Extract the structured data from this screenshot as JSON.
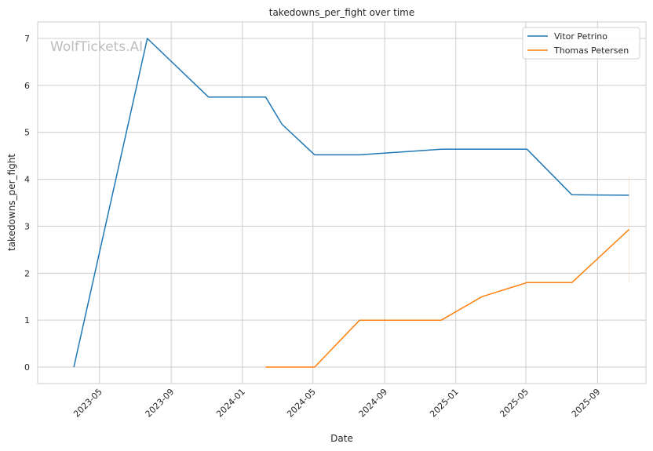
{
  "chart_data": {
    "type": "line",
    "title": "takedowns_per_fight over time",
    "xlabel": "Date",
    "ylabel": "takedowns_per_fight",
    "watermark": "WolfTickets.AI",
    "xlim": [
      "2023-01-15",
      "2025-11-23"
    ],
    "ylim": [
      -0.35,
      7.35
    ],
    "yticks": [
      0,
      1,
      2,
      3,
      4,
      5,
      6,
      7
    ],
    "xticks": [
      "2023-05",
      "2023-09",
      "2024-01",
      "2024-05",
      "2024-09",
      "2025-01",
      "2025-05",
      "2025-09"
    ],
    "grid": true,
    "legend_position": "top-right",
    "series": [
      {
        "name": "Vitor Petrino",
        "color": "#1f77b4",
        "points": [
          {
            "x": "2023-03-18",
            "y": 0
          },
          {
            "x": "2023-07-22",
            "y": 7
          },
          {
            "x": "2023-11-04",
            "y": 5.75
          },
          {
            "x": "2024-02-10",
            "y": 5.75
          },
          {
            "x": "2024-03-09",
            "y": 5.17
          },
          {
            "x": "2024-05-04",
            "y": 4.52
          },
          {
            "x": "2024-07-20",
            "y": 4.52
          },
          {
            "x": "2024-12-07",
            "y": 4.64
          },
          {
            "x": "2025-05-03",
            "y": 4.64
          },
          {
            "x": "2025-07-19",
            "y": 3.67
          },
          {
            "x": "2025-10-25",
            "y": 3.66
          }
        ]
      },
      {
        "name": "Thomas Petersen",
        "color": "#ff7f0e",
        "points": [
          {
            "x": "2024-02-10",
            "y": 0
          },
          {
            "x": "2024-05-04",
            "y": 0
          },
          {
            "x": "2024-07-20",
            "y": 1
          },
          {
            "x": "2024-12-07",
            "y": 1
          },
          {
            "x": "2025-02-15",
            "y": 1.5
          },
          {
            "x": "2025-05-03",
            "y": 1.8
          },
          {
            "x": "2025-07-19",
            "y": 1.8
          },
          {
            "x": "2025-10-25",
            "y": 2.93
          }
        ]
      }
    ]
  }
}
